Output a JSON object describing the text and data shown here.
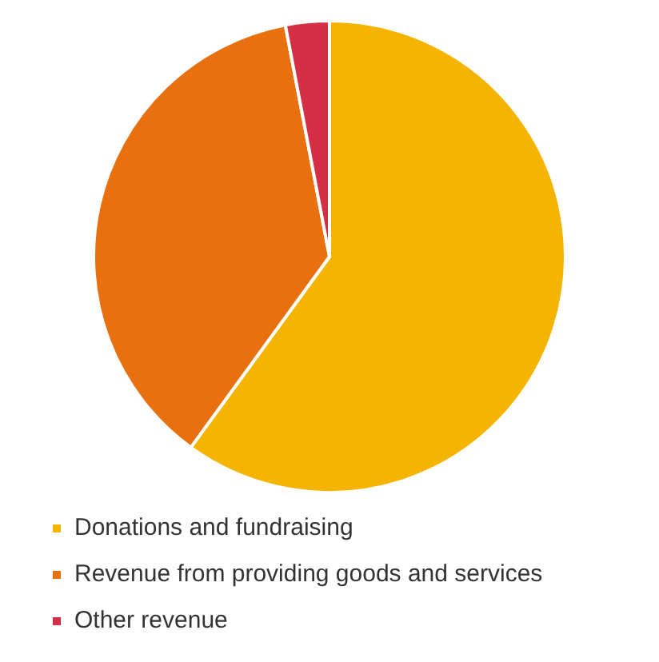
{
  "chart_data": {
    "type": "pie",
    "categories": [
      "Donations and fundraising",
      "Revenue from providing goods and services",
      "Other revenue"
    ],
    "values": [
      60,
      37,
      3
    ],
    "colors": [
      "#f5b400",
      "#e8700f",
      "#d42f45"
    ],
    "legend": "bottom"
  }
}
